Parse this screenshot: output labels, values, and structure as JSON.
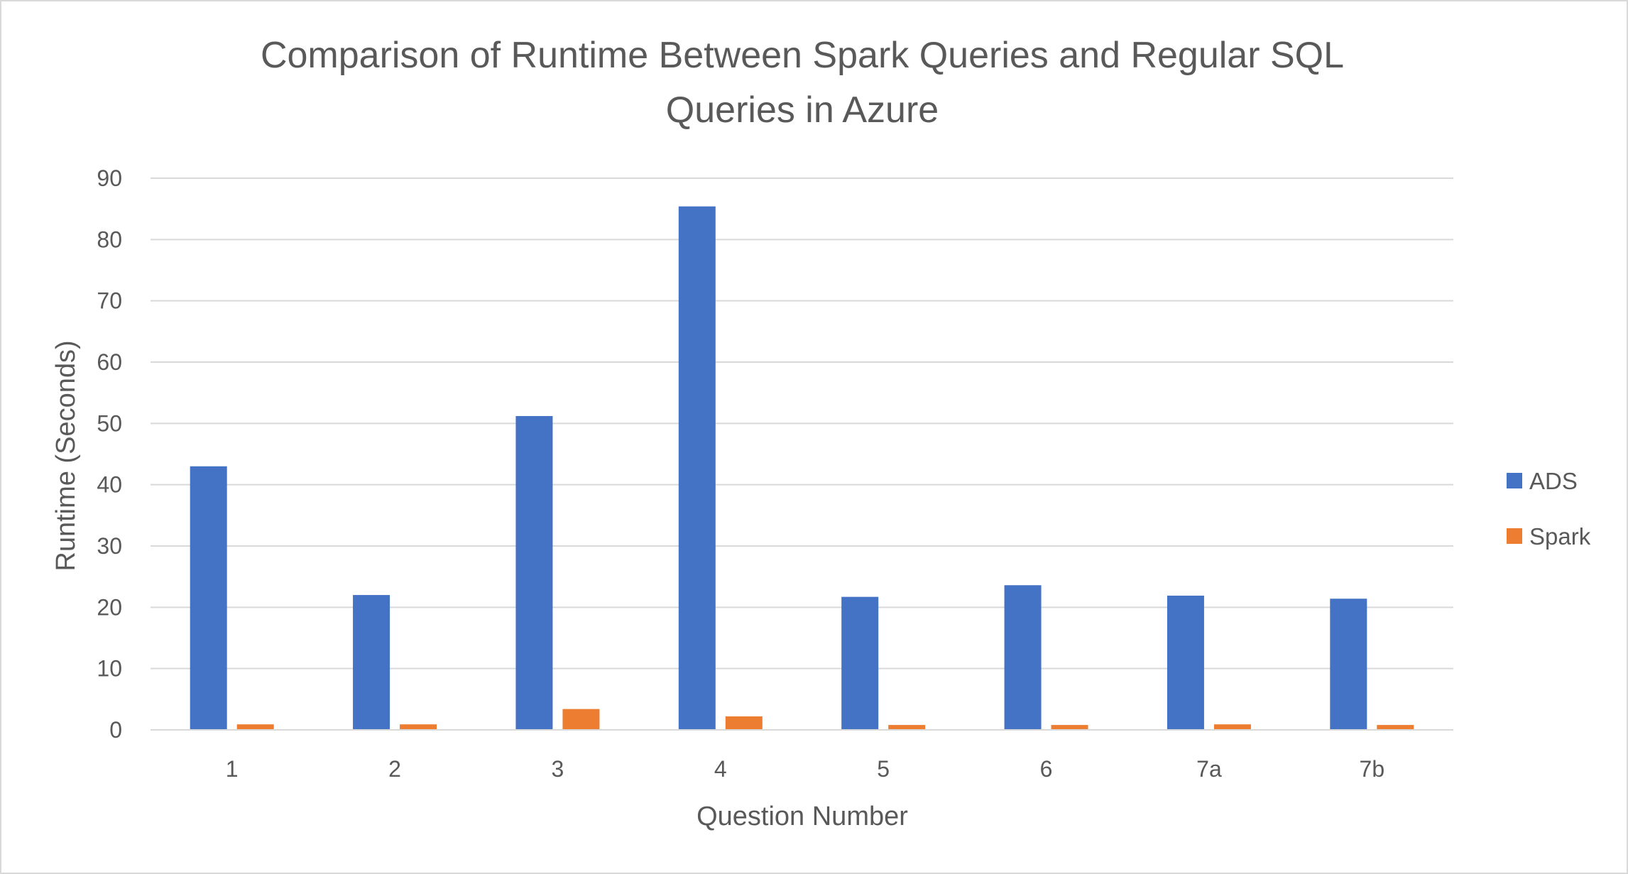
{
  "chart_data": {
    "type": "bar",
    "title_lines": [
      "Comparison of Runtime Between Spark Queries and Regular SQL",
      "Queries in Azure"
    ],
    "xlabel": "Question Number",
    "ylabel": "Runtime (Seconds)",
    "categories": [
      "1",
      "2",
      "3",
      "4",
      "5",
      "6",
      "7a",
      "7b"
    ],
    "ylim": [
      0,
      90
    ],
    "yticks": [
      0,
      10,
      20,
      30,
      40,
      50,
      60,
      70,
      80,
      90
    ],
    "grid": true,
    "legend_position": "right",
    "series": [
      {
        "name": "ADS",
        "color": "#4472c4",
        "values": [
          43.0,
          22.0,
          51.2,
          85.4,
          21.7,
          23.6,
          21.9,
          21.4
        ]
      },
      {
        "name": "Spark",
        "color": "#ed7d31",
        "values": [
          0.9,
          0.9,
          3.4,
          2.2,
          0.8,
          0.8,
          0.9,
          0.8
        ]
      }
    ]
  }
}
